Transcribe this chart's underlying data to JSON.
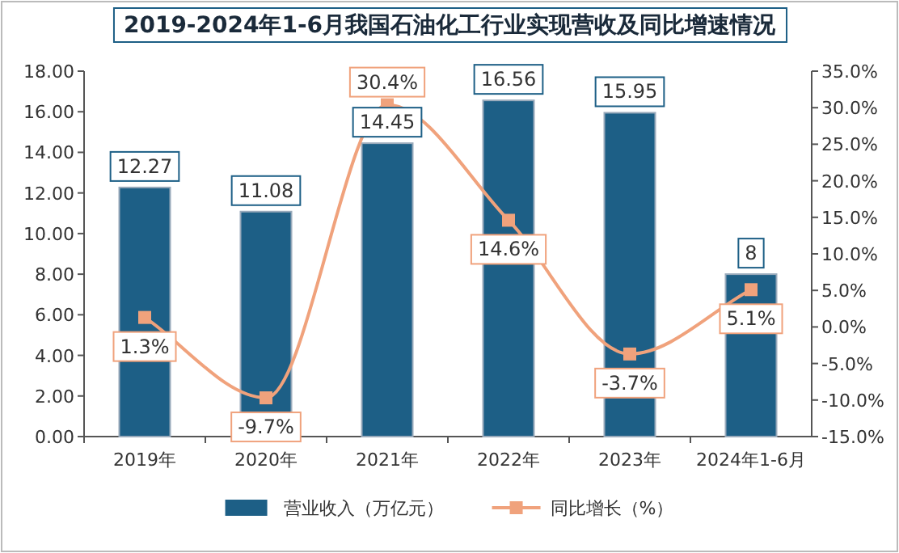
{
  "chart_data": {
    "type": "bar",
    "title": "2019-2024年1-6月我国石油化工行业实现营收及同比增速情况",
    "categories": [
      "2019年",
      "2020年",
      "2021年",
      "2022年",
      "2023年",
      "2024年1-6月"
    ],
    "series": [
      {
        "name": "营业收入（万亿元）",
        "color": "#1d5f86",
        "values": [
          12.27,
          11.08,
          14.45,
          16.56,
          15.95,
          8
        ],
        "value_labels": [
          "12.27",
          "11.08",
          "14.45",
          "16.56",
          "15.95",
          "8"
        ]
      },
      {
        "name": "同比增长（%）",
        "type": "line",
        "axis": "y2",
        "color": "#f0a27c",
        "values": [
          1.3,
          -9.7,
          30.4,
          14.6,
          -3.7,
          5.1
        ],
        "value_labels": [
          "1.3%",
          "-9.7%",
          "30.4%",
          "14.6%",
          "-3.7%",
          "5.1%"
        ]
      }
    ],
    "ylim": [
      0,
      18
    ],
    "yticks": [
      {
        "value": 0,
        "label": "0.00"
      },
      {
        "value": 2,
        "label": "2.00"
      },
      {
        "value": 4,
        "label": "4.00"
      },
      {
        "value": 6,
        "label": "6.00"
      },
      {
        "value": 8,
        "label": "8.00"
      },
      {
        "value": 10,
        "label": "10.00"
      },
      {
        "value": 12,
        "label": "12.00"
      },
      {
        "value": 14,
        "label": "14.00"
      },
      {
        "value": 16,
        "label": "16.00"
      },
      {
        "value": 18,
        "label": "18.00"
      }
    ],
    "y2lim": [
      -15,
      35
    ],
    "y2ticks": [
      {
        "value": -15,
        "label": "-15.0%"
      },
      {
        "value": -10,
        "label": "-10.0%"
      },
      {
        "value": -5,
        "label": "-5.0%"
      },
      {
        "value": 0,
        "label": "0.0%"
      },
      {
        "value": 5,
        "label": "5.0%"
      },
      {
        "value": 10,
        "label": "10.0%"
      },
      {
        "value": 15,
        "label": "15.0%"
      },
      {
        "value": 20,
        "label": "20.0%"
      },
      {
        "value": 25,
        "label": "25.0%"
      },
      {
        "value": 30,
        "label": "30.0%"
      },
      {
        "value": 35,
        "label": "35.0%"
      }
    ],
    "legend": "bottom",
    "marker": "square",
    "line_style": "solid"
  }
}
